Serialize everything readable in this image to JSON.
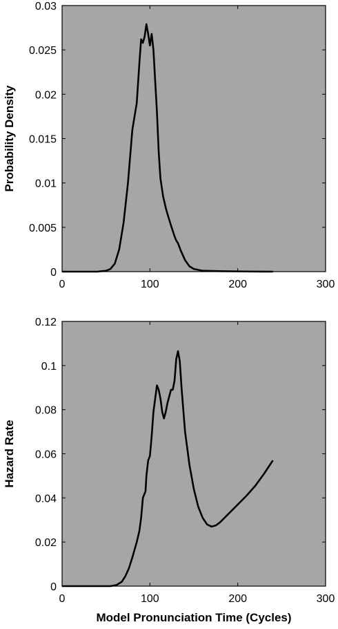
{
  "chart_data": [
    {
      "type": "line",
      "xlabel": "",
      "ylabel": "Probability Density",
      "xlim": [
        0,
        300
      ],
      "ylim": [
        0,
        0.03
      ],
      "x_ticks": [
        "0",
        "100",
        "200",
        "300"
      ],
      "y_ticks": [
        "0",
        "0.005",
        "0.01",
        "0.015",
        "0.02",
        "0.025",
        "0.03"
      ],
      "background_color": "#a6a6a6",
      "line_color": "#000000",
      "grid": false,
      "x": [
        0,
        40,
        50,
        55,
        60,
        65,
        70,
        75,
        80,
        85,
        88,
        90,
        92,
        94,
        96,
        98,
        100,
        102,
        104,
        106,
        108,
        110,
        112,
        115,
        118,
        120,
        124,
        128,
        130,
        132,
        135,
        140,
        145,
        150,
        160,
        180,
        200,
        220,
        240
      ],
      "y": [
        0,
        0,
        0.0001,
        0.0003,
        0.0009,
        0.0025,
        0.0055,
        0.01,
        0.016,
        0.019,
        0.0235,
        0.0262,
        0.0258,
        0.0265,
        0.0279,
        0.0268,
        0.0255,
        0.0268,
        0.025,
        0.0215,
        0.018,
        0.0135,
        0.0105,
        0.0085,
        0.0072,
        0.0065,
        0.0052,
        0.004,
        0.0035,
        0.0032,
        0.0024,
        0.0013,
        0.0006,
        0.0003,
        0.0001,
        5e-05,
        3e-05,
        1e-05,
        0
      ]
    },
    {
      "type": "line",
      "xlabel": "Model Pronunciation Time (Cycles)",
      "ylabel": "Hazard Rate",
      "xlim": [
        0,
        300
      ],
      "ylim": [
        0,
        0.12
      ],
      "x_ticks": [
        "0",
        "100",
        "200",
        "300"
      ],
      "y_ticks": [
        "0",
        "0.02",
        "0.04",
        "0.06",
        "0.08",
        "0.1",
        "0.12"
      ],
      "background_color": "#a6a6a6",
      "line_color": "#000000",
      "grid": false,
      "x": [
        0,
        55,
        62,
        68,
        72,
        76,
        80,
        85,
        88,
        90,
        92,
        95,
        96,
        98,
        100,
        102,
        104,
        106,
        108,
        110,
        112,
        114,
        116,
        118,
        120,
        122,
        124,
        126,
        128,
        130,
        132,
        134,
        136,
        140,
        145,
        150,
        155,
        160,
        165,
        170,
        175,
        180,
        190,
        200,
        210,
        220,
        230,
        240
      ],
      "y": [
        0,
        0,
        0.0005,
        0.002,
        0.0045,
        0.008,
        0.013,
        0.02,
        0.025,
        0.031,
        0.04,
        0.043,
        0.05,
        0.057,
        0.059,
        0.068,
        0.079,
        0.085,
        0.091,
        0.089,
        0.085,
        0.079,
        0.076,
        0.079,
        0.083,
        0.086,
        0.089,
        0.089,
        0.093,
        0.103,
        0.1065,
        0.102,
        0.09,
        0.07,
        0.055,
        0.044,
        0.036,
        0.031,
        0.028,
        0.027,
        0.0275,
        0.029,
        0.033,
        0.037,
        0.041,
        0.0455,
        0.051,
        0.057
      ]
    }
  ]
}
